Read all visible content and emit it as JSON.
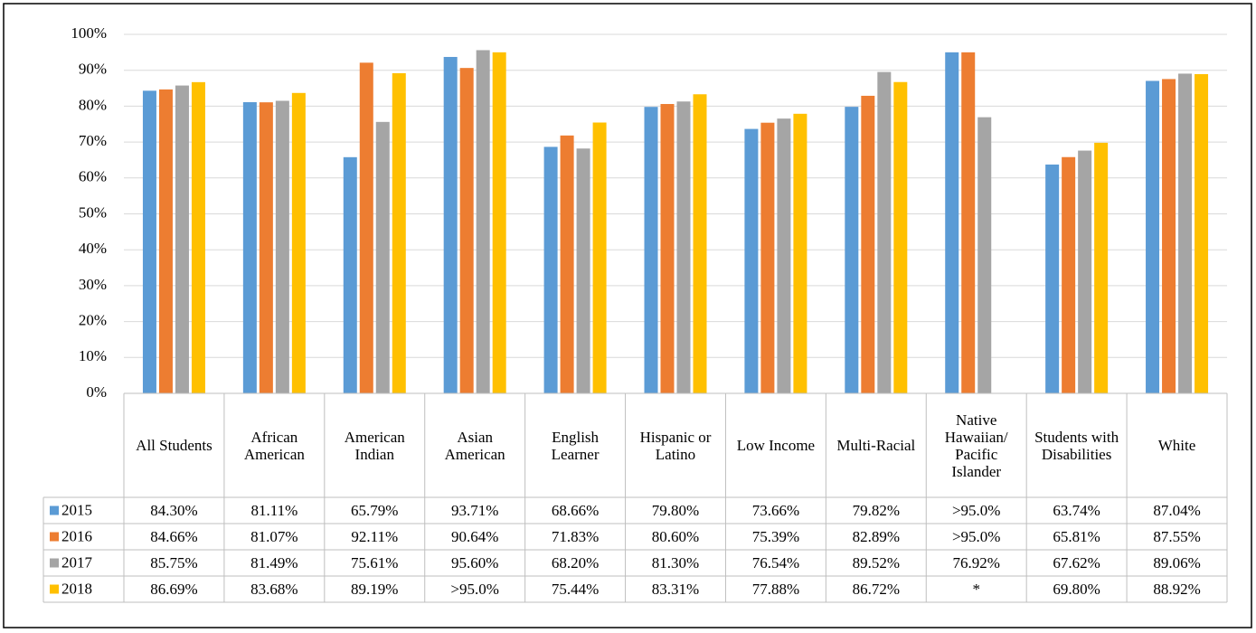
{
  "chart_data": {
    "type": "bar",
    "categories": [
      "All Students",
      "African American",
      "American Indian",
      "Asian American",
      "English Learner",
      "Hispanic or Latino",
      "Low Income",
      "Multi-Racial",
      "Native Hawaiian/ Pacific Islander",
      "Students with Disabilities",
      "White"
    ],
    "series": [
      {
        "name": "2015",
        "color": "#5b9bd5",
        "values": [
          84.3,
          81.11,
          65.79,
          93.71,
          68.66,
          79.8,
          73.66,
          79.82,
          95.0,
          63.74,
          87.04
        ],
        "value_labels": [
          "84.30%",
          "81.11%",
          "65.79%",
          "93.71%",
          "68.66%",
          "79.80%",
          "73.66%",
          "79.82%",
          ">95.0%",
          "63.74%",
          "87.04%"
        ]
      },
      {
        "name": "2016",
        "color": "#ed7d31",
        "values": [
          84.66,
          81.07,
          92.11,
          90.64,
          71.83,
          80.6,
          75.39,
          82.89,
          95.0,
          65.81,
          87.55
        ],
        "value_labels": [
          "84.66%",
          "81.07%",
          "92.11%",
          "90.64%",
          "71.83%",
          "80.60%",
          "75.39%",
          "82.89%",
          ">95.0%",
          "65.81%",
          "87.55%"
        ]
      },
      {
        "name": "2017",
        "color": "#a5a5a5",
        "values": [
          85.75,
          81.49,
          75.61,
          95.6,
          68.2,
          81.3,
          76.54,
          89.52,
          76.92,
          67.62,
          89.06
        ],
        "value_labels": [
          "85.75%",
          "81.49%",
          "75.61%",
          "95.60%",
          "68.20%",
          "81.30%",
          "76.54%",
          "89.52%",
          "76.92%",
          "67.62%",
          "89.06%"
        ]
      },
      {
        "name": "2018",
        "color": "#ffc000",
        "values": [
          86.69,
          83.68,
          89.19,
          95.0,
          75.44,
          83.31,
          77.88,
          86.72,
          null,
          69.8,
          88.92
        ],
        "value_labels": [
          "86.69%",
          "83.68%",
          "89.19%",
          ">95.0%",
          "75.44%",
          "83.31%",
          "77.88%",
          "86.72%",
          "*",
          "69.80%",
          "88.92%"
        ]
      }
    ],
    "ylim": [
      0,
      100
    ],
    "yticks": [
      {
        "value": 0,
        "label": "0%"
      },
      {
        "value": 10,
        "label": "10%"
      },
      {
        "value": 20,
        "label": "20%"
      },
      {
        "value": 30,
        "label": "30%"
      },
      {
        "value": 40,
        "label": "40%"
      },
      {
        "value": 50,
        "label": "50%"
      },
      {
        "value": 60,
        "label": "60%"
      },
      {
        "value": 70,
        "label": "70%"
      },
      {
        "value": 80,
        "label": "80%"
      },
      {
        "value": 90,
        "label": "90%"
      },
      {
        "value": 100,
        "label": "100%"
      }
    ],
    "grid": true
  }
}
